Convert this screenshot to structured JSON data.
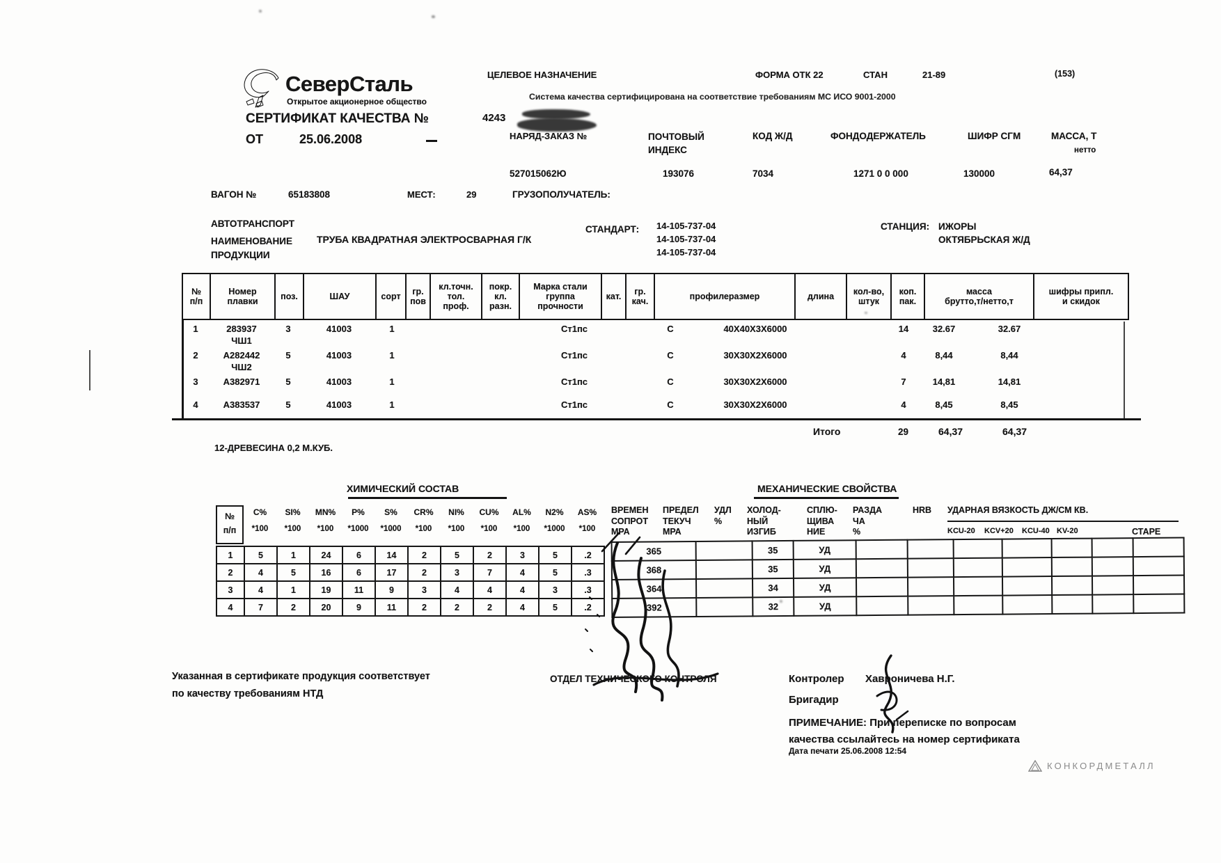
{
  "header": {
    "logo_title": "СеверСталь",
    "logo_subtitle": "Открытое акционерное общество",
    "cert_label": "СЕРТИФИКАТ КАЧЕСТВА №",
    "cert_number": "4243",
    "ot_label": "ОТ",
    "cert_date": "25.06.2008",
    "purpose_label": "ЦЕЛЕВОЕ НАЗНАЧЕНИЕ",
    "form_label": "ФОРМА ОТК 22",
    "stan_label": "СТАН",
    "stan_value": "21-89",
    "page_ref": "(153)",
    "iso_note": "Система качества сертифицирована на соответствие требованиям МС ИСО 9001-2000"
  },
  "fields": {
    "naryad_label": "НАРЯД-ЗАКАЗ №",
    "naryad_value": "527015062Ю",
    "postal_label": "ПОЧТОВЫЙ\nИНДЕКС",
    "postal_value": "193076",
    "rail_label": "КОД Ж/Д",
    "rail_value": "7034",
    "fond_label": "ФОНДОДЕРЖАТЕЛЬ",
    "fond_value": "1271 0 0 000",
    "shifr_label": "ШИФР СГМ",
    "shifr_value": "130000",
    "massa_label": "МАССА, Т",
    "massa_sub": "нетто",
    "massa_value": "64,37"
  },
  "shipment": {
    "wagon_label": "ВАГОН №",
    "wagon_value": "65183808",
    "mest_label": "МЕСТ:",
    "mest_value": "29",
    "gruzo_label": "ГРУЗОПОЛУЧАТЕЛЬ:",
    "auto_label": "АВТОТРАНСПОРТ",
    "name_label": "НАИМЕНОВАНИЕ\nПРОДУКЦИИ",
    "product": "ТРУБА КВАДРАТНАЯ ЭЛЕКТРОСВАРНАЯ Г/К",
    "standard_label": "СТАНДАРТ:",
    "standards": [
      "14-105-737-04",
      "14-105-737-04",
      "14-105-737-04"
    ],
    "station_label": "СТАНЦИЯ:",
    "station_value": "ИЖОРЫ",
    "railway_value": "ОКТЯБРЬСКАЯ Ж/Д"
  },
  "main_table": {
    "headers": [
      "№\nп/п",
      "Номер\nплавки",
      "поз.",
      "ШАУ",
      "сорт",
      "гр.\nпов",
      "кл.точн.\nтол.\nпроф.",
      "покр.\nкл.\nразн.",
      "Марка стали\nгруппа\nпрочности",
      "кат.",
      "гр.\nкач.",
      "профилеразмер",
      "длина",
      "кол-во,\nштук",
      "коп.\nпак.",
      "масса\nбрутто,т/нетто,т",
      "шифры припл.\nи скидок"
    ],
    "rows": [
      {
        "num": "1",
        "heat": "283937\nЧШ1",
        "pos": "3",
        "shau": "41003",
        "sort": "1",
        "mark": "Ст1пс",
        "grk": "С",
        "profile": "40X40X3X6000",
        "qty": "14",
        "gross": "32.67",
        "net": "32.67"
      },
      {
        "num": "2",
        "heat": "А282442\nЧШ2",
        "pos": "5",
        "shau": "41003",
        "sort": "1",
        "mark": "Ст1пс",
        "grk": "С",
        "profile": "30X30X2X6000",
        "qty": "4",
        "gross": "8,44",
        "net": "8,44"
      },
      {
        "num": "3",
        "heat": "А382971",
        "pos": "5",
        "shau": "41003",
        "sort": "1",
        "mark": "Ст1пс",
        "grk": "С",
        "profile": "30X30X2X6000",
        "qty": "7",
        "gross": "14,81",
        "net": "14,81"
      },
      {
        "num": "4",
        "heat": "А383537",
        "pos": "5",
        "shau": "41003",
        "sort": "1",
        "mark": "Ст1пс",
        "grk": "С",
        "profile": "30X30X2X6000",
        "qty": "4",
        "gross": "8,45",
        "net": "8,45"
      }
    ],
    "total_label": "Итого",
    "total_qty": "29",
    "total_gross": "64,37",
    "total_net": "64,37"
  },
  "wood_note": "12-ДРЕВЕСИНА 0,2 М.КУБ.",
  "chem": {
    "title": "ХИМИЧЕСКИЙ СОСТАВ",
    "num_header": "№\nп/п",
    "elements": [
      {
        "n": "C%",
        "m": "*100"
      },
      {
        "n": "SI%",
        "m": "*100"
      },
      {
        "n": "MN%",
        "m": "*100"
      },
      {
        "n": "P%",
        "m": "*1000"
      },
      {
        "n": "S%",
        "m": "*1000"
      },
      {
        "n": "CR%",
        "m": "*100"
      },
      {
        "n": "NI%",
        "m": "*100"
      },
      {
        "n": "CU%",
        "m": "*100"
      },
      {
        "n": "AL%",
        "m": "*100"
      },
      {
        "n": "N2%",
        "m": "*1000"
      },
      {
        "n": "AS%",
        "m": "*100"
      }
    ],
    "rows": [
      [
        "1",
        "5",
        "1",
        "24",
        "6",
        "14",
        "2",
        "5",
        "2",
        "3",
        "5",
        ".2"
      ],
      [
        "2",
        "4",
        "5",
        "16",
        "6",
        "17",
        "2",
        "3",
        "7",
        "4",
        "5",
        ".3"
      ],
      [
        "3",
        "4",
        "1",
        "19",
        "11",
        "9",
        "3",
        "4",
        "4",
        "4",
        "3",
        ".3"
      ],
      [
        "4",
        "7",
        "2",
        "20",
        "9",
        "11",
        "2",
        "2",
        "2",
        "4",
        "5",
        ".2"
      ]
    ]
  },
  "mech": {
    "title": "МЕХАНИЧЕСКИЕ СВОЙСТВА",
    "col_labels": [
      "ВРЕМЕН\nСОПРОТ\nМРА",
      "ПРЕДЕЛ\nТЕКУЧ\nМРА",
      "УДЛ\n%",
      "ХОЛОД-\nНЫЙ\nИЗГИБ",
      "СПЛЮ-\nЩИВА\nНИЕ",
      "РАЗДА\nЧА\n%",
      "HRB"
    ],
    "impact_title": "УДАРНАЯ ВЯЗКОСТЬ ДЖ/СМ КВ.",
    "impact_cols": [
      "KCU-20",
      "KCV+20",
      "KCU-40",
      "KV-20"
    ],
    "stare_label": "СТАРЕ",
    "rows": [
      [
        "365",
        "",
        "35",
        "УД",
        "",
        "",
        "",
        "",
        "",
        "",
        ""
      ],
      [
        "368",
        "",
        "35",
        "УД",
        "",
        "",
        "",
        "",
        "",
        "",
        ""
      ],
      [
        "364",
        "",
        "34",
        "УД",
        "",
        "",
        "",
        "",
        "",
        "",
        ""
      ],
      [
        "392",
        "",
        "32",
        "УД",
        "",
        "",
        "",
        "",
        "",
        "",
        ""
      ]
    ]
  },
  "footer": {
    "conformity": "Указанная в сертификате продукция соответствует\nпо качеству требованиям НТД",
    "otk": "ОТДЕЛ ТЕХНИЧЕСКОГО КОНТРОЛЯ",
    "controller_label": "Контролер",
    "controller_name": "Хавроничева Н.Г.",
    "brigadir_label": "Бригадир",
    "note": "ПРИМЕЧАНИЕ: При переписке по вопросам\nкачества ссылайтесь на номер сертификата",
    "print_date": "Дата печати 25.06.2008 12:54"
  },
  "brand": "КОНКОРДМЕТАЛЛ"
}
